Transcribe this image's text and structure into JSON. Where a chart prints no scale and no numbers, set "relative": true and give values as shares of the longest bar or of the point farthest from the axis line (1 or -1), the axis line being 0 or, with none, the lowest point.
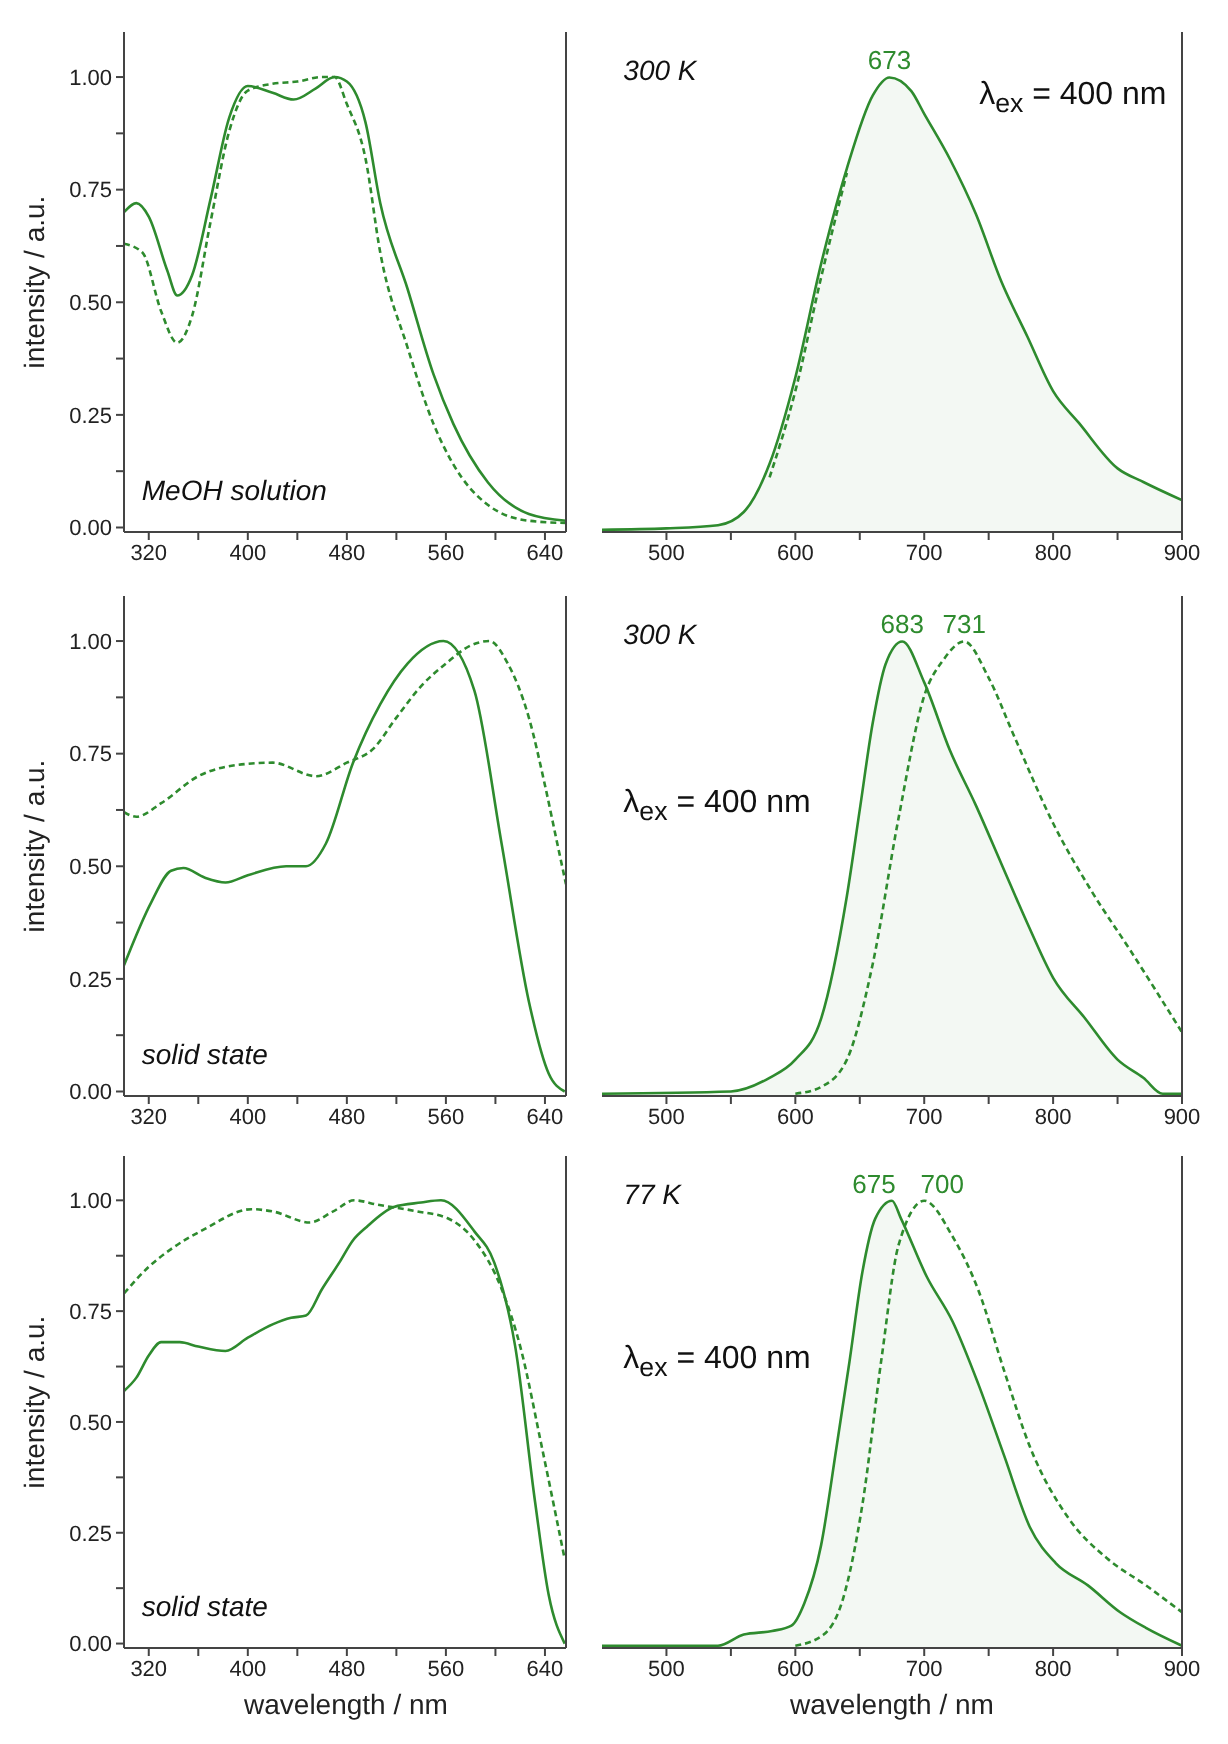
{
  "chart_data": [
    {
      "type": "line",
      "ylabel": "intensity / a.u.",
      "xlim": [
        300,
        657
      ],
      "ylim": [
        -0.01,
        1.1
      ],
      "xticks": [
        320,
        {
          "value": 360,
          "label": null
        },
        400,
        {
          "value": 440,
          "label": null
        },
        480,
        {
          "value": 520,
          "label": null
        },
        560,
        {
          "value": 600,
          "label": null
        },
        640
      ],
      "yticks": [
        {
          "value": 0,
          "label": "0.00"
        },
        {
          "value": 0.125,
          "label": null
        },
        {
          "value": 0.25,
          "label": "0.25"
        },
        {
          "value": 0.375,
          "label": null
        },
        {
          "value": 0.5,
          "label": "0.50"
        },
        {
          "value": 0.625,
          "label": null
        },
        {
          "value": 0.75,
          "label": "0.75"
        },
        {
          "value": 0.875,
          "label": null
        },
        {
          "value": 1,
          "label": "1.00"
        }
      ],
      "annotations": [
        "MeOH solution"
      ],
      "series": [
        {
          "color": "#2e8b2e",
          "line_style": "solid",
          "x": [
            300,
            310,
            320,
            335,
            343,
            355,
            370,
            385,
            400,
            420,
            437,
            455,
            470,
            480,
            495,
            507,
            529,
            550,
            566,
            594,
            627,
            657
          ],
          "values": [
            0.7,
            0.72,
            0.69,
            0.57,
            0.515,
            0.56,
            0.73,
            0.91,
            0.98,
            0.965,
            0.95,
            0.975,
            1.0,
            0.99,
            0.9,
            0.72,
            0.53,
            0.34,
            0.23,
            0.1,
            0.03,
            0.015
          ]
        },
        {
          "color": "#2e8b2e",
          "line_style": "dashed",
          "x": [
            300,
            315,
            330,
            343,
            355,
            370,
            385,
            400,
            420,
            440,
            460,
            470,
            480,
            495,
            507,
            529,
            550,
            566,
            594,
            627,
            657
          ],
          "values": [
            0.63,
            0.61,
            0.48,
            0.41,
            0.47,
            0.68,
            0.88,
            0.97,
            0.985,
            0.99,
            1.0,
            1.0,
            0.94,
            0.82,
            0.61,
            0.4,
            0.23,
            0.14,
            0.05,
            0.015,
            0.01
          ]
        }
      ]
    },
    {
      "type": "line",
      "relative": true,
      "tick_labels": "x",
      "xlim": [
        450,
        900
      ],
      "xticks": [
        500,
        {
          "value": 550,
          "label": null
        },
        600,
        {
          "value": 650,
          "label": null
        },
        700,
        {
          "value": 750,
          "label": null
        },
        800,
        {
          "value": 850,
          "label": null
        },
        900
      ],
      "annotations": [
        "300 K",
        "λ$_{ex}$ = 400 nm",
        {
          "text": "673",
          "x": 673,
          "y": 1
        }
      ],
      "series": [
        {
          "type": "area",
          "color": "#2e8b2e",
          "line_style": "solid",
          "x": [
            450,
            500,
            540,
            560,
            580,
            600,
            620,
            640,
            660,
            673,
            690,
            700,
            720,
            740,
            760,
            780,
            800,
            820,
            850,
            870,
            900
          ],
          "values": [
            0.005,
            0.008,
            0.015,
            0.044,
            0.15,
            0.34,
            0.59,
            0.8,
            0.96,
            1.0,
            0.97,
            0.92,
            0.82,
            0.7,
            0.55,
            0.43,
            0.31,
            0.24,
            0.14,
            0.11,
            0.07
          ]
        },
        {
          "color": "#2e8b2e",
          "line_style": "dashed",
          "x": [
            580,
            600,
            620,
            640
          ],
          "values": [
            0.12,
            0.31,
            0.56,
            0.79
          ]
        }
      ]
    },
    {
      "type": "line",
      "ylabel": "intensity / a.u.",
      "xlim": [
        300,
        657
      ],
      "ylim": [
        -0.01,
        1.1
      ],
      "xticks": [
        320,
        {
          "value": 360,
          "label": null
        },
        400,
        {
          "value": 440,
          "label": null
        },
        480,
        {
          "value": 520,
          "label": null
        },
        560,
        {
          "value": 600,
          "label": null
        },
        640
      ],
      "yticks": [
        {
          "value": 0,
          "label": "0.00"
        },
        {
          "value": 0.125,
          "label": null
        },
        {
          "value": 0.25,
          "label": "0.25"
        },
        {
          "value": 0.375,
          "label": null
        },
        {
          "value": 0.5,
          "label": "0.50"
        },
        {
          "value": 0.625,
          "label": null
        },
        {
          "value": 0.75,
          "label": "0.75"
        },
        {
          "value": 0.875,
          "label": null
        },
        {
          "value": 1,
          "label": "1.00"
        }
      ],
      "annotations": [
        "solid state"
      ],
      "series": [
        {
          "color": "#2e8b2e",
          "line_style": "solid",
          "x": [
            300,
            322,
            338,
            348,
            365,
            382,
            400,
            431,
            447,
            463,
            485,
            507,
            529,
            558,
            583,
            605,
            627,
            643,
            656
          ],
          "values": [
            0.28,
            0.42,
            0.49,
            0.496,
            0.475,
            0.464,
            0.48,
            0.5,
            0.5,
            0.55,
            0.73,
            0.86,
            0.95,
            1.0,
            0.89,
            0.55,
            0.2,
            0.04,
            0.0
          ]
        },
        {
          "color": "#2e8b2e",
          "line_style": "dashed",
          "x": [
            300,
            310,
            330,
            360,
            398,
            420,
            455,
            480,
            501,
            520,
            540,
            560,
            580,
            595,
            610,
            627,
            640,
            650,
            657
          ],
          "values": [
            0.62,
            0.61,
            0.64,
            0.7,
            0.727,
            0.73,
            0.7,
            0.73,
            0.76,
            0.83,
            0.9,
            0.95,
            0.99,
            1.0,
            0.95,
            0.83,
            0.68,
            0.55,
            0.46
          ]
        }
      ]
    },
    {
      "type": "line",
      "relative": true,
      "tick_labels": "x",
      "xlim": [
        450,
        900
      ],
      "xticks": [
        500,
        {
          "value": 550,
          "label": null
        },
        600,
        {
          "value": 650,
          "label": null
        },
        700,
        {
          "value": 750,
          "label": null
        },
        800,
        {
          "value": 850,
          "label": null
        },
        900
      ],
      "annotations": [
        "300 K",
        "λ$_{ex}$ = 400 nm",
        {
          "text": "683",
          "x": 683,
          "y": 1
        },
        {
          "text": "731",
          "x": 731,
          "y": 1
        }
      ],
      "series": [
        {
          "type": "area",
          "color": "#2e8b2e",
          "line_style": "solid",
          "x": [
            450,
            550,
            580,
            600,
            620,
            640,
            650,
            660,
            670,
            683,
            700,
            720,
            740,
            760,
            780,
            800,
            825,
            850,
            870,
            885,
            900
          ],
          "values": [
            0.005,
            0.01,
            0.04,
            0.08,
            0.17,
            0.44,
            0.63,
            0.82,
            0.95,
            1.0,
            0.91,
            0.76,
            0.64,
            0.51,
            0.38,
            0.26,
            0.17,
            0.08,
            0.04,
            0.005,
            0.005
          ]
        },
        {
          "color": "#2e8b2e",
          "line_style": "dashed",
          "x": [
            600,
            620,
            640,
            660,
            680,
            700,
            715,
            731,
            750,
            770,
            800,
            830,
            860,
            900
          ],
          "values": [
            0.005,
            0.02,
            0.08,
            0.29,
            0.61,
            0.88,
            0.96,
            1.0,
            0.92,
            0.79,
            0.6,
            0.45,
            0.32,
            0.14
          ]
        }
      ]
    },
    {
      "type": "line",
      "ylabel": "intensity / a.u.",
      "xlabel": "wavelength / nm",
      "xlim": [
        300,
        657
      ],
      "ylim": [
        -0.01,
        1.1
      ],
      "xticks": [
        320,
        {
          "value": 360,
          "label": null
        },
        400,
        {
          "value": 440,
          "label": null
        },
        480,
        {
          "value": 520,
          "label": null
        },
        560,
        {
          "value": 600,
          "label": null
        },
        640
      ],
      "yticks": [
        {
          "value": 0,
          "label": "0.00"
        },
        {
          "value": 0.125,
          "label": null
        },
        {
          "value": 0.25,
          "label": "0.25"
        },
        {
          "value": 0.375,
          "label": null
        },
        {
          "value": 0.5,
          "label": "0.50"
        },
        {
          "value": 0.625,
          "label": null
        },
        {
          "value": 0.75,
          "label": "0.75"
        },
        {
          "value": 0.875,
          "label": null
        },
        {
          "value": 1,
          "label": "1.00"
        }
      ],
      "annotations": [
        "solid state"
      ],
      "series": [
        {
          "color": "#2e8b2e",
          "line_style": "solid",
          "x": [
            300,
            310,
            320,
            330,
            345,
            360,
            382,
            400,
            420,
            435,
            447,
            460,
            474,
            485,
            496,
            518,
            540,
            556,
            583,
            599,
            616,
            632,
            643,
            656
          ],
          "values": [
            0.57,
            0.6,
            0.65,
            0.68,
            0.68,
            0.67,
            0.66,
            0.69,
            0.72,
            0.735,
            0.74,
            0.8,
            0.86,
            0.91,
            0.94,
            0.985,
            0.995,
            1.0,
            0.93,
            0.86,
            0.67,
            0.32,
            0.11,
            0.0
          ]
        },
        {
          "color": "#2e8b2e",
          "line_style": "dashed",
          "x": [
            300,
            320,
            338,
            365,
            403,
            420,
            450,
            469,
            486,
            505,
            537,
            561,
            583,
            605,
            621,
            637,
            656
          ],
          "values": [
            0.79,
            0.85,
            0.89,
            0.935,
            0.98,
            0.975,
            0.95,
            0.975,
            1.0,
            0.99,
            0.975,
            0.96,
            0.91,
            0.8,
            0.66,
            0.45,
            0.19
          ]
        }
      ]
    },
    {
      "type": "line",
      "relative": true,
      "tick_labels": "x",
      "xlabel": "wavelength / nm",
      "xlim": [
        450,
        900
      ],
      "xticks": [
        500,
        {
          "value": 550,
          "label": null
        },
        600,
        {
          "value": 650,
          "label": null
        },
        700,
        {
          "value": 750,
          "label": null
        },
        800,
        {
          "value": 850,
          "label": null
        },
        900
      ],
      "annotations": [
        "77 K",
        "λ$_{ex}$ = 400 nm",
        {
          "text": "675",
          "x": 675,
          "y": 1
        },
        {
          "text": "700",
          "x": 700,
          "y": 1
        }
      ],
      "series": [
        {
          "type": "area",
          "color": "#2e8b2e",
          "line_style": "solid",
          "x": [
            450,
            540,
            560,
            582,
            597,
            607,
            620,
            632,
            642,
            652,
            662,
            675,
            682,
            702,
            722,
            742,
            762,
            782,
            802,
            827,
            852,
            872,
            900
          ],
          "values": [
            0.005,
            0.005,
            0.03,
            0.038,
            0.05,
            0.1,
            0.23,
            0.45,
            0.64,
            0.84,
            0.96,
            1.0,
            0.96,
            0.83,
            0.73,
            0.59,
            0.43,
            0.27,
            0.19,
            0.14,
            0.08,
            0.045,
            0.005
          ]
        },
        {
          "color": "#2e8b2e",
          "line_style": "dashed",
          "x": [
            600,
            622,
            637,
            652,
            667,
            680,
            700,
            722,
            742,
            762,
            782,
            812,
            842,
            872,
            900
          ],
          "values": [
            0.005,
            0.03,
            0.11,
            0.32,
            0.65,
            0.9,
            1.0,
            0.92,
            0.8,
            0.62,
            0.45,
            0.29,
            0.2,
            0.14,
            0.08
          ]
        }
      ]
    }
  ]
}
